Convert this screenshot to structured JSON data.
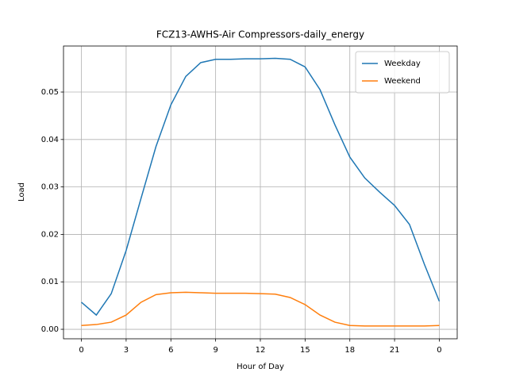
{
  "chart_data": {
    "type": "line",
    "title": "FCZ13-AWHS-Air Compressors-daily_energy",
    "xlabel": "Hour of Day",
    "ylabel": "Load",
    "x": [
      0,
      1,
      2,
      3,
      4,
      5,
      6,
      7,
      8,
      9,
      10,
      11,
      12,
      13,
      14,
      15,
      16,
      17,
      18,
      19,
      20,
      21,
      22,
      23,
      24
    ],
    "series": [
      {
        "name": "Weekday",
        "color": "#1f77b4",
        "values": [
          0.0057,
          0.003,
          0.0075,
          0.0166,
          0.0276,
          0.0385,
          0.0473,
          0.0533,
          0.0562,
          0.0569,
          0.0569,
          0.057,
          0.057,
          0.0571,
          0.0569,
          0.0553,
          0.0505,
          0.0431,
          0.0363,
          0.0319,
          0.0289,
          0.0261,
          0.0221,
          0.0137,
          0.0059
        ]
      },
      {
        "name": "Weekend",
        "color": "#ff7f0e",
        "values": [
          0.0008,
          0.001,
          0.0015,
          0.003,
          0.0057,
          0.0073,
          0.0077,
          0.0078,
          0.0077,
          0.0076,
          0.0076,
          0.0076,
          0.0075,
          0.0074,
          0.0067,
          0.0052,
          0.003,
          0.0015,
          0.0008,
          0.0007,
          0.0007,
          0.0007,
          0.0007,
          0.0007,
          0.0008
        ]
      }
    ],
    "xlim": [
      -1.2,
      25.2
    ],
    "ylim": [
      -0.002,
      0.0597
    ],
    "xticks": [
      0,
      3,
      6,
      9,
      12,
      15,
      18,
      21,
      {
        "value": 24,
        "label": "0"
      }
    ],
    "yticks": [
      {
        "value": 0,
        "label": "0.00"
      },
      0.01,
      0.02,
      0.03,
      0.04,
      0.05
    ],
    "grid": true,
    "legend": "upper-right"
  }
}
